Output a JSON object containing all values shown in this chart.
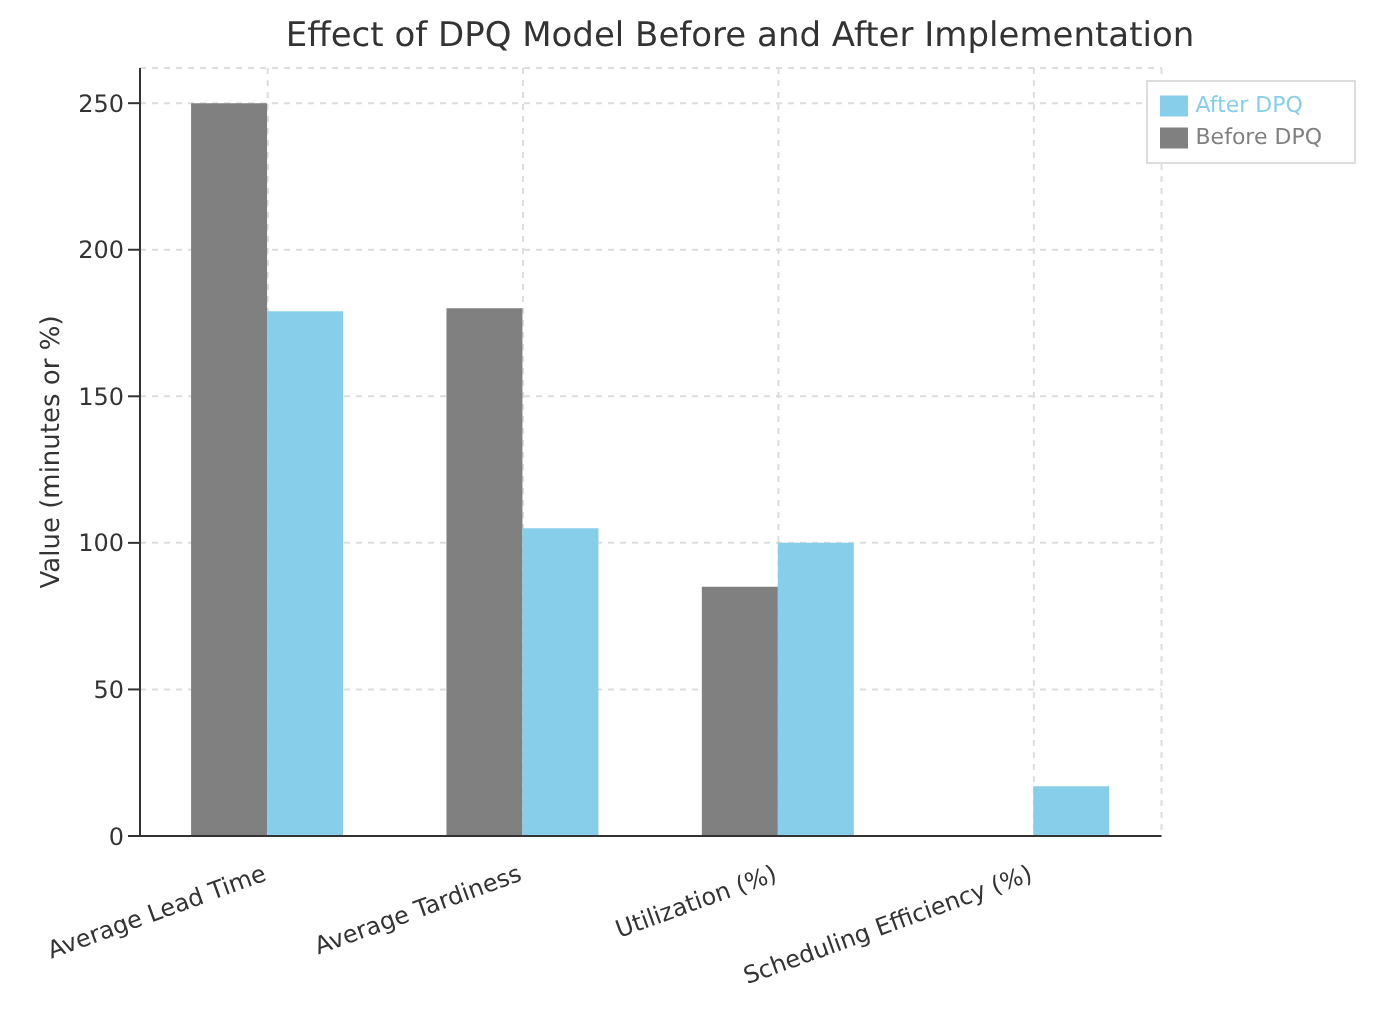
{
  "chart_data": {
    "type": "bar",
    "title": "Effect of DPQ Model Before and After Implementation",
    "ylabel": "Value (minutes or %)",
    "categories": [
      "Average Lead Time",
      "Average Tardiness",
      "Utilization (%)",
      "Scheduling Efficiency (%)"
    ],
    "series": [
      {
        "name": "Before DPQ",
        "color": "#808080",
        "values": [
          250,
          180,
          85,
          0
        ]
      },
      {
        "name": "After DPQ",
        "color": "#87ceeb",
        "values": [
          179,
          105,
          100,
          17
        ]
      }
    ],
    "ylim": [
      0,
      262
    ],
    "yticks": [
      0,
      50,
      100,
      150,
      200,
      250
    ],
    "grid": true,
    "legend": "top right"
  }
}
